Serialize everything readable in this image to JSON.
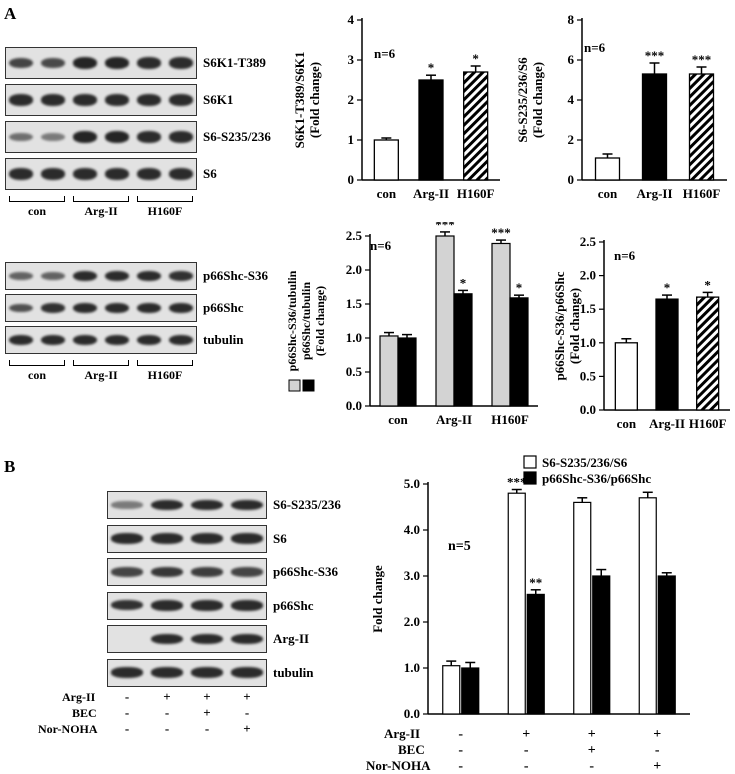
{
  "panels": {
    "a": "A",
    "b": "B"
  },
  "blots_a_top": {
    "rows": [
      "S6K1-T389",
      "S6K1",
      "S6-S235/236",
      "S6"
    ],
    "groups": [
      "con",
      "Arg-II",
      "H160F"
    ]
  },
  "blots_a_bottom": {
    "rows": [
      "p66Shc-S36",
      "p66Shc",
      "tubulin"
    ],
    "groups": [
      "con",
      "Arg-II",
      "H160F"
    ]
  },
  "blots_b": {
    "rows": [
      "S6-S235/236",
      "S6",
      "p66Shc-S36",
      "p66Shc",
      "Arg-II",
      "tubulin"
    ],
    "conditions": [
      {
        "name": "Arg-II",
        "signs": [
          "-",
          "+",
          "+",
          "+"
        ]
      },
      {
        "name": "BEC",
        "signs": [
          "-",
          "-",
          "+",
          "-"
        ]
      },
      {
        "name": "Nor-NOHA",
        "signs": [
          "-",
          "-",
          "-",
          "+"
        ]
      }
    ]
  },
  "chart_data": [
    {
      "type": "bar",
      "ylabel": "S6K1-T389/S6K1 (Fold change)",
      "note": "n=6",
      "categories": [
        "con",
        "Arg-II",
        "H160F"
      ],
      "values": [
        1.0,
        2.5,
        2.7
      ],
      "errors": [
        0.05,
        0.12,
        0.15
      ],
      "significance": [
        "",
        "*",
        "*"
      ],
      "ylim": [
        0,
        4
      ],
      "yticks": [
        0,
        1,
        2,
        3,
        4
      ],
      "tick_labels": [
        "0",
        "1",
        "2",
        "3",
        "4"
      ],
      "fills": [
        "white",
        "black",
        "hatched"
      ]
    },
    {
      "type": "bar",
      "ylabel": "S6-S235/236/S6 (Fold change)",
      "note": "n=6",
      "categories": [
        "con",
        "Arg-II",
        "H160F"
      ],
      "values": [
        1.1,
        5.3,
        5.3
      ],
      "errors": [
        0.2,
        0.55,
        0.35
      ],
      "significance": [
        "",
        "***",
        "***"
      ],
      "ylim": [
        0,
        8
      ],
      "yticks": [
        0,
        2,
        4,
        6,
        8
      ],
      "tick_labels": [
        "0",
        "2",
        "4",
        "6",
        "8"
      ],
      "fills": [
        "white",
        "black",
        "hatched"
      ]
    },
    {
      "type": "bar",
      "ylabel": "p66Shc-S36/tubulin p66Shc/tubulin (Fold change)",
      "note": "n=6",
      "categories": [
        "con",
        "Arg-II",
        "H160F"
      ],
      "series": [
        {
          "values": [
            1.03,
            2.5,
            2.39
          ],
          "errors": [
            0.05,
            0.06,
            0.05
          ],
          "significance": [
            "",
            "***",
            "***"
          ],
          "color": "#d3d3d3"
        },
        {
          "values": [
            1.0,
            1.65,
            1.59
          ],
          "errors": [
            0.05,
            0.05,
            0.04
          ],
          "significance": [
            "",
            "*",
            "*"
          ],
          "color": "#000000"
        }
      ],
      "ylim": [
        0,
        2.5
      ],
      "yticks": [
        0,
        0.5,
        1.0,
        1.5,
        2.0,
        2.5
      ],
      "tick_labels": [
        "0.0",
        "0.5",
        "1.0",
        "1.5",
        "2.0",
        "2.5"
      ]
    },
    {
      "type": "bar",
      "ylabel": "p66Shc-S36/p66Shc (Fold change)",
      "note": "n=6",
      "categories": [
        "con",
        "Arg-II",
        "H160F"
      ],
      "values": [
        1.0,
        1.65,
        1.68
      ],
      "errors": [
        0.06,
        0.06,
        0.07
      ],
      "significance": [
        "",
        "*",
        "*"
      ],
      "ylim": [
        0,
        2.5
      ],
      "yticks": [
        0,
        0.5,
        1.0,
        1.5,
        2.0,
        2.5
      ],
      "tick_labels": [
        "0.0",
        "0.5",
        "1.0",
        "1.5",
        "2.0",
        "2.5"
      ],
      "fills": [
        "white",
        "black",
        "hatched"
      ]
    },
    {
      "type": "bar",
      "ylabel": "Fold change",
      "note": "n=5",
      "legend": "top-right",
      "series": [
        {
          "name": "S6-S235/236/S6",
          "values": [
            1.05,
            4.8,
            4.6,
            4.7
          ],
          "errors": [
            0.1,
            0.08,
            0.1,
            0.12
          ],
          "significance": [
            "",
            "***",
            "",
            ""
          ],
          "color": "#ffffff"
        },
        {
          "name": "p66Shc-S36/p66Shc",
          "values": [
            1.0,
            2.6,
            3.0,
            3.0
          ],
          "errors": [
            0.12,
            0.1,
            0.14,
            0.07
          ],
          "significance": [
            "",
            "**",
            "",
            ""
          ],
          "color": "#000000"
        }
      ],
      "ylim": [
        0,
        5
      ],
      "yticks": [
        0,
        1,
        2,
        3,
        4,
        5
      ],
      "tick_labels": [
        "0.0",
        "1.0",
        "2.0",
        "3.0",
        "4.0",
        "5.0"
      ]
    }
  ]
}
